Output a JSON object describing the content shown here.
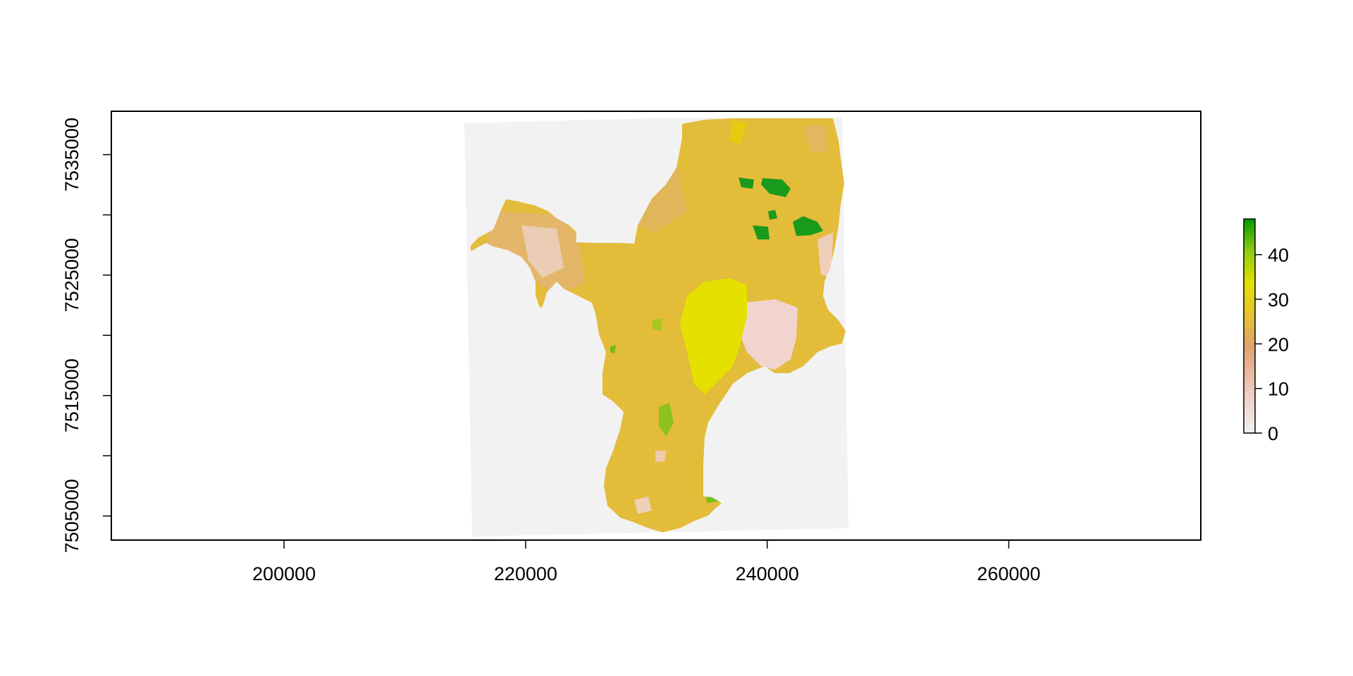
{
  "map": {
    "type": "raster",
    "x_ticks": [
      "200000",
      "220000",
      "240000",
      "260000"
    ],
    "x_tick_values": [
      200000,
      220000,
      240000,
      260000
    ],
    "x_minor_ticks": [],
    "y_ticks": [
      "7505000",
      "7515000",
      "7525000",
      "7535000"
    ],
    "y_tick_values": [
      7505000,
      7515000,
      7525000,
      7535000
    ],
    "y_minor_tick_values": [
      7510000,
      7520000,
      7530000
    ],
    "xlim": [
      185700,
      275900
    ],
    "ylim": [
      7503000,
      7538600
    ],
    "colors": {
      "nodata_background": "#f2f2f2",
      "low_pink": "#f2d8d3",
      "mid_tan": "#e0b070",
      "mid_ochre": "#e6c12e",
      "high_yellow": "#e4e100",
      "high_lime": "#8fcd11",
      "max_green": "#1a9a1a"
    }
  },
  "legend": {
    "ticks": [
      "0",
      "10",
      "20",
      "30",
      "40"
    ],
    "tick_values": [
      0,
      10,
      20,
      30,
      40
    ],
    "range": [
      0,
      48
    ],
    "gradient": [
      "#f2f2f2",
      "#eec9c0",
      "#e0a270",
      "#e6c12e",
      "#e4e100",
      "#8fcd11",
      "#009a00"
    ]
  }
}
